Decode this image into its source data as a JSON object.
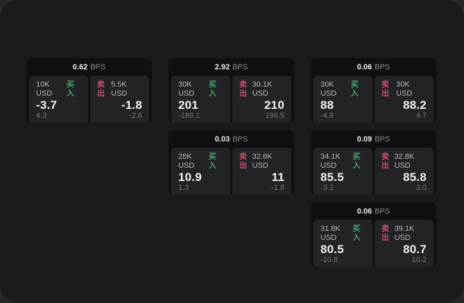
{
  "page": {
    "theme": "dark",
    "colors": {
      "outer_background": "#28282b",
      "window_background": "#1a1b1d",
      "card_background": "#101012",
      "panel_background": "#232327",
      "primary_text": "#f2f2f3",
      "muted_text": "#8b8b90",
      "faint_text": "#76767b",
      "buy_green": "#47a56a",
      "sell_red": "#c64f68"
    }
  },
  "labels": {
    "bps_unit": "BPS",
    "buy": "买入",
    "sell": "卖出"
  },
  "cards": [
    {
      "col": 1,
      "row": 1,
      "bps": "0.62",
      "buy": {
        "amount": "10K USD",
        "value": "-3.7",
        "delta": "4.3"
      },
      "sell": {
        "amount": "5.5K USD",
        "value": "-1.8",
        "delta": "-2.6"
      }
    },
    {
      "col": 2,
      "row": 1,
      "bps": "2.92",
      "buy": {
        "amount": "30K USD",
        "value": "201",
        "delta": "-188.1"
      },
      "sell": {
        "amount": "30.1K USD",
        "value": "210",
        "delta": "196.5"
      }
    },
    {
      "col": 3,
      "row": 1,
      "bps": "0.06",
      "buy": {
        "amount": "30K USD",
        "value": "88",
        "delta": "-4.9"
      },
      "sell": {
        "amount": "30K USD",
        "value": "88.2",
        "delta": "4.7"
      }
    },
    {
      "col": 2,
      "row": 2,
      "bps": "0.03",
      "buy": {
        "amount": "28K USD",
        "value": "10.9",
        "delta": "1.3"
      },
      "sell": {
        "amount": "32.6K USD",
        "value": "11",
        "delta": "-1.8"
      }
    },
    {
      "col": 3,
      "row": 2,
      "bps": "0.09",
      "buy": {
        "amount": "34.1K USD",
        "value": "85.5",
        "delta": "-3.1"
      },
      "sell": {
        "amount": "32.8K USD",
        "value": "85.8",
        "delta": "3.0"
      }
    },
    {
      "col": 3,
      "row": 3,
      "bps": "0.06",
      "buy": {
        "amount": "31.8K USD",
        "value": "80.5",
        "delta": "-10.8"
      },
      "sell": {
        "amount": "39.1K USD",
        "value": "80.7",
        "delta": "10.2"
      }
    }
  ]
}
